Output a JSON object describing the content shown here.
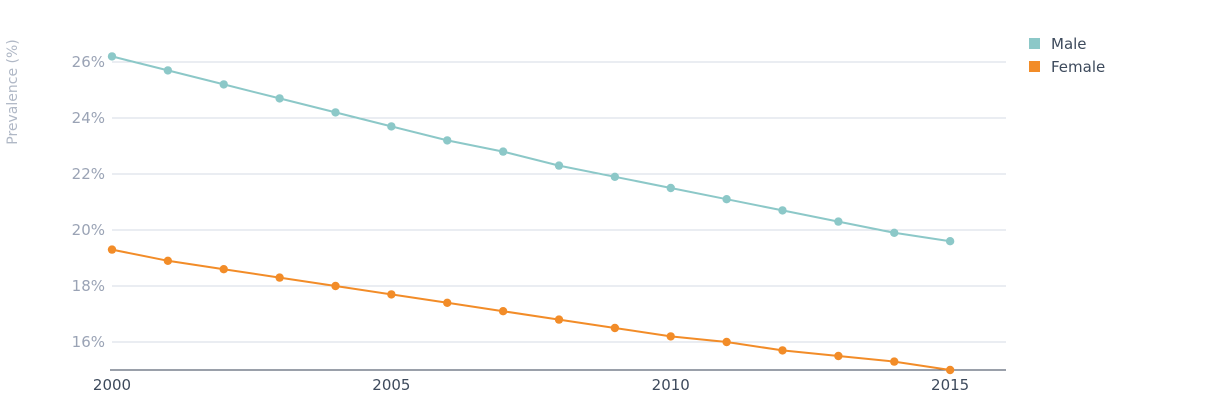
{
  "chart_data": {
    "type": "line",
    "ylabel": "Prevalence (%)",
    "x": [
      2000,
      2001,
      2002,
      2003,
      2004,
      2005,
      2006,
      2007,
      2008,
      2009,
      2010,
      2011,
      2012,
      2013,
      2014,
      2015
    ],
    "x_ticks": [
      {
        "value": 2000,
        "label": "2000"
      },
      {
        "value": 2005,
        "label": "2005"
      },
      {
        "value": 2010,
        "label": "2010"
      },
      {
        "value": 2015,
        "label": "2015"
      }
    ],
    "y_ticks": [
      {
        "value": 16,
        "label": "16%"
      },
      {
        "value": 18,
        "label": "18%"
      },
      {
        "value": 20,
        "label": "20%"
      },
      {
        "value": 22,
        "label": "22%"
      },
      {
        "value": 24,
        "label": "24%"
      },
      {
        "value": 26,
        "label": "26%"
      }
    ],
    "xlim": [
      2000,
      2016
    ],
    "ylim": [
      15,
      27
    ],
    "grid": true,
    "legend_position": "top-right",
    "series": [
      {
        "name": "Male",
        "color": "#8cc8c8",
        "values": [
          26.2,
          25.7,
          25.2,
          24.7,
          24.2,
          23.7,
          23.2,
          22.8,
          22.3,
          21.9,
          21.5,
          21.1,
          20.7,
          20.3,
          19.9,
          19.6
        ]
      },
      {
        "name": "Female",
        "color": "#f28c28",
        "values": [
          19.3,
          18.9,
          18.6,
          18.3,
          18.0,
          17.7,
          17.4,
          17.1,
          16.8,
          16.5,
          16.2,
          16.0,
          15.7,
          15.5,
          15.3,
          15.0
        ]
      }
    ]
  }
}
